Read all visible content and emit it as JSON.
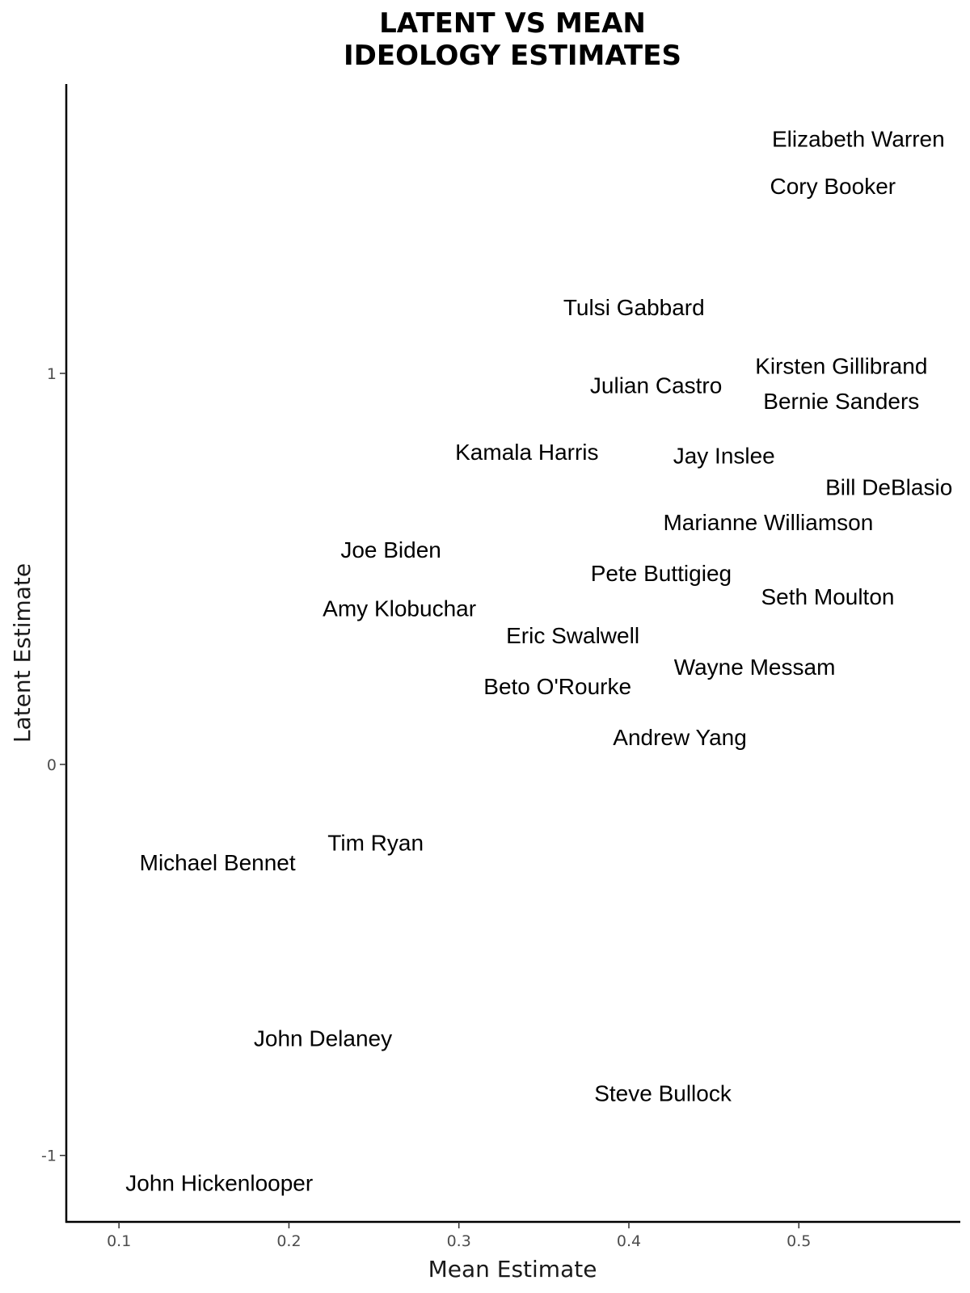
{
  "chart_data": {
    "type": "scatter",
    "title_line1": "LATENT VS MEAN",
    "title_line2": "IDEOLOGY ESTIMATES",
    "xlabel": "Mean Estimate",
    "ylabel": "Latent Estimate",
    "xlim": [
      0.069,
      0.595
    ],
    "ylim": [
      -1.17,
      1.74
    ],
    "xticks": [
      0.1,
      0.2,
      0.3,
      0.4,
      0.5
    ],
    "xtick_labels": [
      "0.1",
      "0.2",
      "0.3",
      "0.4",
      "0.5"
    ],
    "yticks": [
      -1,
      0,
      1
    ],
    "ytick_labels": [
      "-1",
      "0",
      "1"
    ],
    "grid": false,
    "points": [
      {
        "label": "Elizabeth Warren",
        "x": 0.535,
        "y": 1.6
      },
      {
        "label": "Cory Booker",
        "x": 0.52,
        "y": 1.48
      },
      {
        "label": "Tulsi Gabbard",
        "x": 0.403,
        "y": 1.17
      },
      {
        "label": "Kirsten Gillibrand",
        "x": 0.525,
        "y": 1.02
      },
      {
        "label": "Julian Castro",
        "x": 0.416,
        "y": 0.97
      },
      {
        "label": "Bernie Sanders",
        "x": 0.525,
        "y": 0.93
      },
      {
        "label": "Kamala Harris",
        "x": 0.34,
        "y": 0.8
      },
      {
        "label": "Jay Inslee",
        "x": 0.456,
        "y": 0.79
      },
      {
        "label": "Bill DeBlasio",
        "x": 0.553,
        "y": 0.71
      },
      {
        "label": "Marianne Williamson",
        "x": 0.482,
        "y": 0.62
      },
      {
        "label": "Joe Biden",
        "x": 0.26,
        "y": 0.55
      },
      {
        "label": "Pete Buttigieg",
        "x": 0.419,
        "y": 0.49
      },
      {
        "label": "Seth Moulton",
        "x": 0.517,
        "y": 0.43
      },
      {
        "label": "Amy Klobuchar",
        "x": 0.265,
        "y": 0.4
      },
      {
        "label": "Eric Swalwell",
        "x": 0.367,
        "y": 0.33
      },
      {
        "label": "Wayne Messam",
        "x": 0.474,
        "y": 0.25
      },
      {
        "label": "Beto O'Rourke",
        "x": 0.358,
        "y": 0.2
      },
      {
        "label": "Andrew Yang",
        "x": 0.43,
        "y": 0.07
      },
      {
        "label": "Tim Ryan",
        "x": 0.251,
        "y": -0.2
      },
      {
        "label": "Michael Bennet",
        "x": 0.158,
        "y": -0.25
      },
      {
        "label": "John Delaney",
        "x": 0.22,
        "y": -0.7
      },
      {
        "label": "Steve Bullock",
        "x": 0.42,
        "y": -0.84
      },
      {
        "label": "John Hickenlooper",
        "x": 0.159,
        "y": -1.07
      }
    ]
  }
}
